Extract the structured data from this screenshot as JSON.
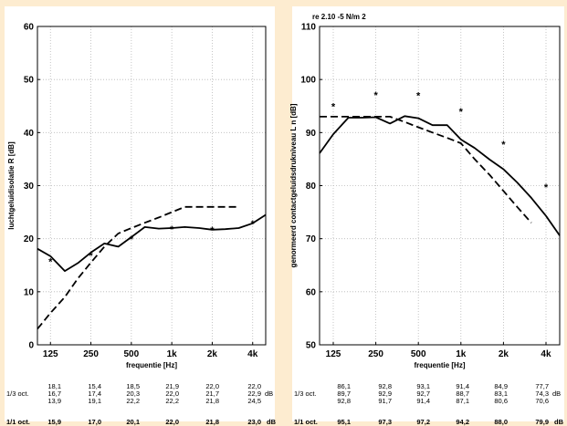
{
  "colors": {
    "background": "#fdecd0",
    "panel": "#ffffff",
    "line": "#000000"
  },
  "chart_data": [
    {
      "type": "line",
      "title": "",
      "xlabel": "frequentie [Hz]",
      "ylabel": "luchtgeluidisolatie R [dB]",
      "x_scale": "log",
      "xlim": [
        100,
        5000
      ],
      "ylim": [
        0,
        60
      ],
      "yticks": [
        10,
        20,
        30,
        40,
        50,
        60
      ],
      "x_tick_labels": [
        {
          "hz": 125,
          "label": "125"
        },
        {
          "hz": 250,
          "label": "250"
        },
        {
          "hz": 500,
          "label": "500"
        },
        {
          "hz": 1000,
          "label": "1k"
        },
        {
          "hz": 2000,
          "label": "2k"
        },
        {
          "hz": 4000,
          "label": "4k"
        }
      ],
      "grid": true,
      "series": [
        {
          "style": "solid",
          "x": [
            100,
            125,
            160,
            200,
            250,
            315,
            400,
            500,
            630,
            800,
            1000,
            1250,
            1600,
            2000,
            2500,
            3150,
            4000,
            5000
          ],
          "values": [
            18.1,
            16.7,
            13.9,
            15.4,
            17.4,
            19.1,
            18.5,
            20.3,
            22.2,
            21.9,
            22.0,
            22.2,
            22.0,
            21.7,
            21.8,
            22.0,
            22.9,
            24.5
          ]
        },
        {
          "style": "dashed",
          "x": [
            100,
            125,
            160,
            200,
            250,
            315,
            400,
            500,
            630,
            800,
            1000,
            1250,
            1600,
            2000,
            2500,
            3150
          ],
          "values": [
            3,
            6,
            9,
            12.5,
            15.5,
            18.5,
            21,
            22,
            23,
            24,
            25,
            26,
            26,
            26,
            26,
            26
          ]
        },
        {
          "style": "markers",
          "marker": "*",
          "x": [
            125,
            250,
            500,
            1000,
            2000,
            4000
          ],
          "values": [
            15.9,
            17.0,
            20.1,
            22.0,
            21.8,
            23.0
          ]
        }
      ],
      "table": {
        "rows": [
          {
            "label": "",
            "values": [
              "18,1",
              "15,4",
              "18,5",
              "21,9",
              "22,0",
              "22,0"
            ],
            "unit": ""
          },
          {
            "label": "1/3 oct.",
            "values": [
              "16,7",
              "17,4",
              "20,3",
              "22,0",
              "21,7",
              "22,9"
            ],
            "unit": "dB"
          },
          {
            "label": "",
            "values": [
              "13,9",
              "19,1",
              "22,2",
              "22,2",
              "21,8",
              "24,5"
            ],
            "unit": ""
          }
        ],
        "octave": {
          "label": "1/1 oct.",
          "values": [
            "15,9",
            "17,0",
            "20,1",
            "22,0",
            "21,8",
            "23,0"
          ],
          "unit": "dB"
        }
      }
    },
    {
      "type": "line",
      "title": "re 2.10 -5 N/m 2",
      "xlabel": "frequentie [Hz]",
      "ylabel": "genormeerd contactgeluidsdrukniveau L n [dB]",
      "x_scale": "log",
      "xlim": [
        100,
        5000
      ],
      "ylim": [
        50,
        110
      ],
      "yticks": [
        50,
        60,
        70,
        80,
        90,
        100,
        110
      ],
      "x_tick_labels": [
        {
          "hz": 125,
          "label": "125"
        },
        {
          "hz": 250,
          "label": "250"
        },
        {
          "hz": 500,
          "label": "500"
        },
        {
          "hz": 1000,
          "label": "1k"
        },
        {
          "hz": 2000,
          "label": "2k"
        },
        {
          "hz": 4000,
          "label": "4k"
        }
      ],
      "grid": true,
      "series": [
        {
          "style": "solid",
          "x": [
            100,
            125,
            160,
            200,
            250,
            315,
            400,
            500,
            630,
            800,
            1000,
            1250,
            1600,
            2000,
            2500,
            3150,
            4000,
            5000
          ],
          "values": [
            86.1,
            89.7,
            92.8,
            92.8,
            92.9,
            91.7,
            93.1,
            92.7,
            91.4,
            91.4,
            88.7,
            87.1,
            84.9,
            83.1,
            80.6,
            77.7,
            74.3,
            70.6
          ]
        },
        {
          "style": "dashed",
          "x": [
            100,
            125,
            160,
            200,
            250,
            315,
            400,
            500,
            630,
            800,
            1000,
            1250,
            1600,
            2000,
            2500,
            3150
          ],
          "values": [
            93,
            93,
            93,
            93,
            93,
            93,
            92,
            91,
            90,
            89,
            88,
            85,
            82,
            79,
            76,
            73
          ]
        },
        {
          "style": "markers",
          "marker": "*",
          "x": [
            125,
            250,
            500,
            1000,
            2000,
            4000
          ],
          "values": [
            95.1,
            97.3,
            97.2,
            94.2,
            88.0,
            79.9
          ]
        }
      ],
      "table": {
        "rows": [
          {
            "label": "",
            "values": [
              "86,1",
              "92,8",
              "93,1",
              "91,4",
              "84,9",
              "77,7"
            ],
            "unit": ""
          },
          {
            "label": "1/3 oct.",
            "values": [
              "89,7",
              "92,9",
              "92,7",
              "88,7",
              "83,1",
              "74,3"
            ],
            "unit": "dB"
          },
          {
            "label": "",
            "values": [
              "92,8",
              "91,7",
              "91,4",
              "87,1",
              "80,6",
              "70,6"
            ],
            "unit": ""
          }
        ],
        "octave": {
          "label": "1/1 oct.",
          "values": [
            "95,1",
            "97,3",
            "97,2",
            "94,2",
            "88,0",
            "79,9"
          ],
          "unit": "dB"
        }
      }
    }
  ]
}
